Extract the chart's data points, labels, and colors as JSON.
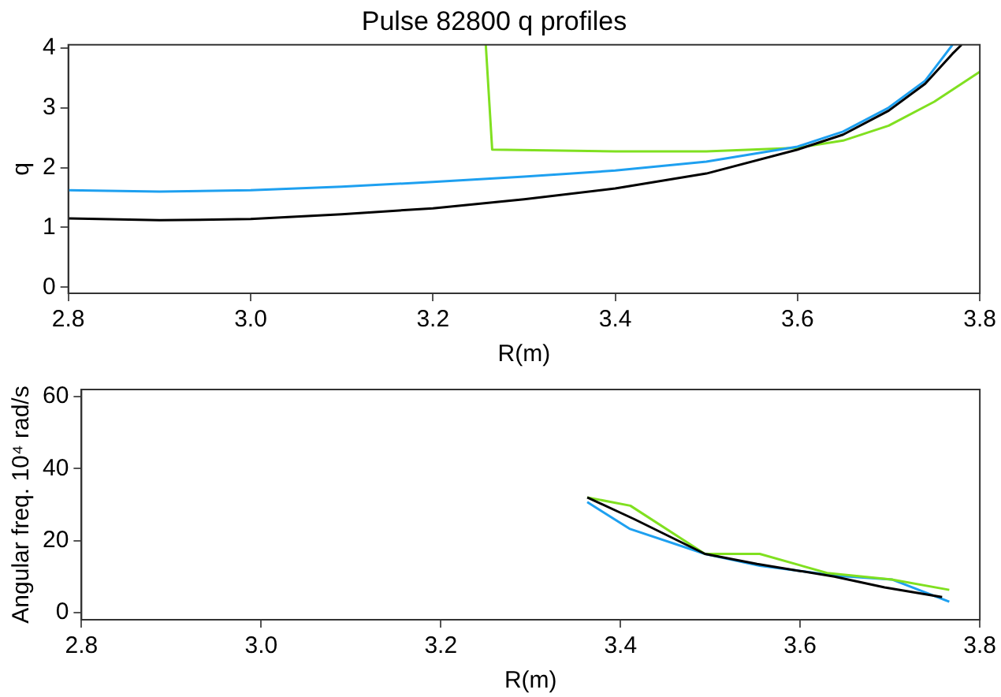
{
  "chart_data": [
    {
      "type": "line",
      "title": "Pulse 82800 q profiles",
      "xlabel": "R(m)",
      "ylabel": "q",
      "grid": false,
      "legend": false,
      "xlim": [
        2.8,
        3.8
      ],
      "xticks": [
        2.8,
        {
          "value": 3,
          "label": "3.0"
        },
        3.2,
        3.4,
        3.6,
        3.8
      ],
      "ylim": [
        -0.1,
        4.05
      ],
      "yticks": [
        0,
        1,
        2,
        3,
        4
      ],
      "series": [
        {
          "color": "#000000",
          "x": [
            2.8,
            2.9,
            3.0,
            3.1,
            3.2,
            3.3,
            3.4,
            3.5,
            3.6,
            3.65,
            3.7,
            3.74,
            3.77,
            3.78
          ],
          "values": [
            1.15,
            1.12,
            1.14,
            1.22,
            1.32,
            1.47,
            1.65,
            1.9,
            2.3,
            2.55,
            2.95,
            3.4,
            3.9,
            4.05
          ]
        },
        {
          "color": "#1ea0f0",
          "x": [
            2.8,
            2.9,
            3.0,
            3.1,
            3.2,
            3.3,
            3.4,
            3.5,
            3.6,
            3.65,
            3.7,
            3.74,
            3.77
          ],
          "values": [
            1.62,
            1.6,
            1.62,
            1.68,
            1.76,
            1.85,
            1.95,
            2.1,
            2.35,
            2.6,
            3.0,
            3.45,
            4.05
          ]
        },
        {
          "color": "#80e020",
          "x": [
            3.258,
            3.265,
            3.4,
            3.5,
            3.6,
            3.65,
            3.7,
            3.75,
            3.8
          ],
          "values": [
            4.05,
            2.3,
            2.27,
            2.27,
            2.33,
            2.45,
            2.7,
            3.1,
            3.6
          ]
        }
      ]
    },
    {
      "type": "line",
      "xlabel": "R(m)",
      "ylabel": "Angular freq. 10⁴ rad/s",
      "grid": false,
      "legend": false,
      "xlim": [
        2.8,
        3.8
      ],
      "xticks": [
        2.8,
        {
          "value": 3,
          "label": "3.0"
        },
        3.2,
        3.4,
        3.6,
        3.8
      ],
      "ylim": [
        -2,
        62
      ],
      "yticks": [
        0,
        20,
        40,
        60
      ],
      "series": [
        {
          "color": "#000000",
          "x": [
            3.363,
            3.415,
            3.494,
            3.552,
            3.638,
            3.694,
            3.758
          ],
          "values": [
            32,
            26,
            16.3,
            13.5,
            10,
            7,
            4.3
          ]
        },
        {
          "color": "#80e020",
          "x": [
            3.363,
            3.411,
            3.494,
            3.555,
            3.63,
            3.702,
            3.766
          ],
          "values": [
            32,
            29.7,
            16.3,
            16.3,
            11,
            9.2,
            6.3
          ]
        },
        {
          "color": "#1ea0f0",
          "x": [
            3.363,
            3.41,
            3.494,
            3.555,
            3.638,
            3.702,
            3.766
          ],
          "values": [
            30.7,
            23.3,
            16.3,
            13,
            10.3,
            9.2,
            3
          ]
        }
      ]
    }
  ]
}
